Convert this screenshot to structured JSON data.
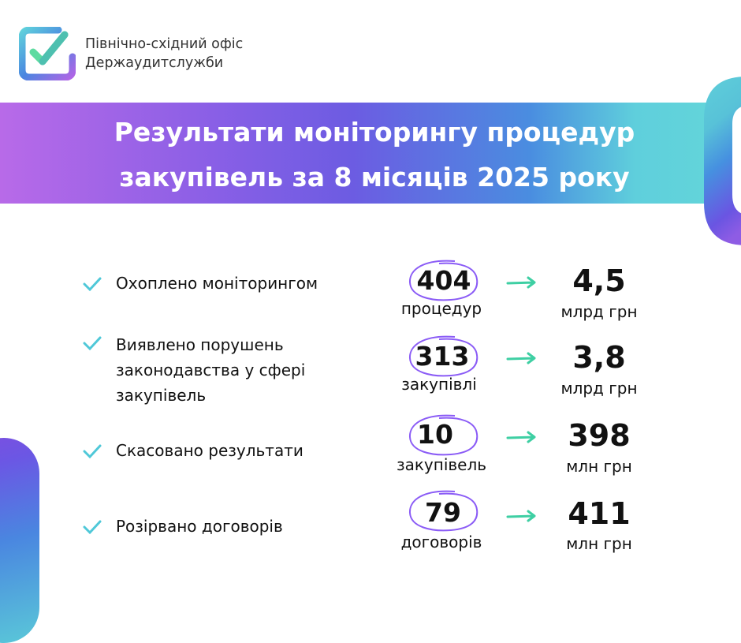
{
  "logo": {
    "line1": "Північно-східний офіс",
    "line2": "Держаудитслужби"
  },
  "title": {
    "line1": "Результати моніторингу процедур",
    "line2": "закупівель за 8 місяців 2025 року"
  },
  "colors": {
    "accent_purple": "#8b5cf6",
    "arrow_green": "#3ecfa3",
    "check_cyan": "#4fc8d8"
  },
  "rows": [
    {
      "label": [
        "Охоплено моніторингом"
      ],
      "number": "404",
      "number_unit": "процедур",
      "value": "4,5",
      "value_unit": "млрд грн"
    },
    {
      "label": [
        "Виявлено порушень",
        "законодавства у сфері",
        "закупівель"
      ],
      "number": "313",
      "number_unit": "закупівлі",
      "value": "3,8",
      "value_unit": "млрд грн"
    },
    {
      "label": [
        "Скасовано результати"
      ],
      "number": "10",
      "number_unit": "закупівель",
      "value": "398",
      "value_unit": "млн грн"
    },
    {
      "label": [
        "Розірвано договорів"
      ],
      "number": "79",
      "number_unit": "договорів",
      "value": "411",
      "value_unit": "млн грн"
    }
  ]
}
